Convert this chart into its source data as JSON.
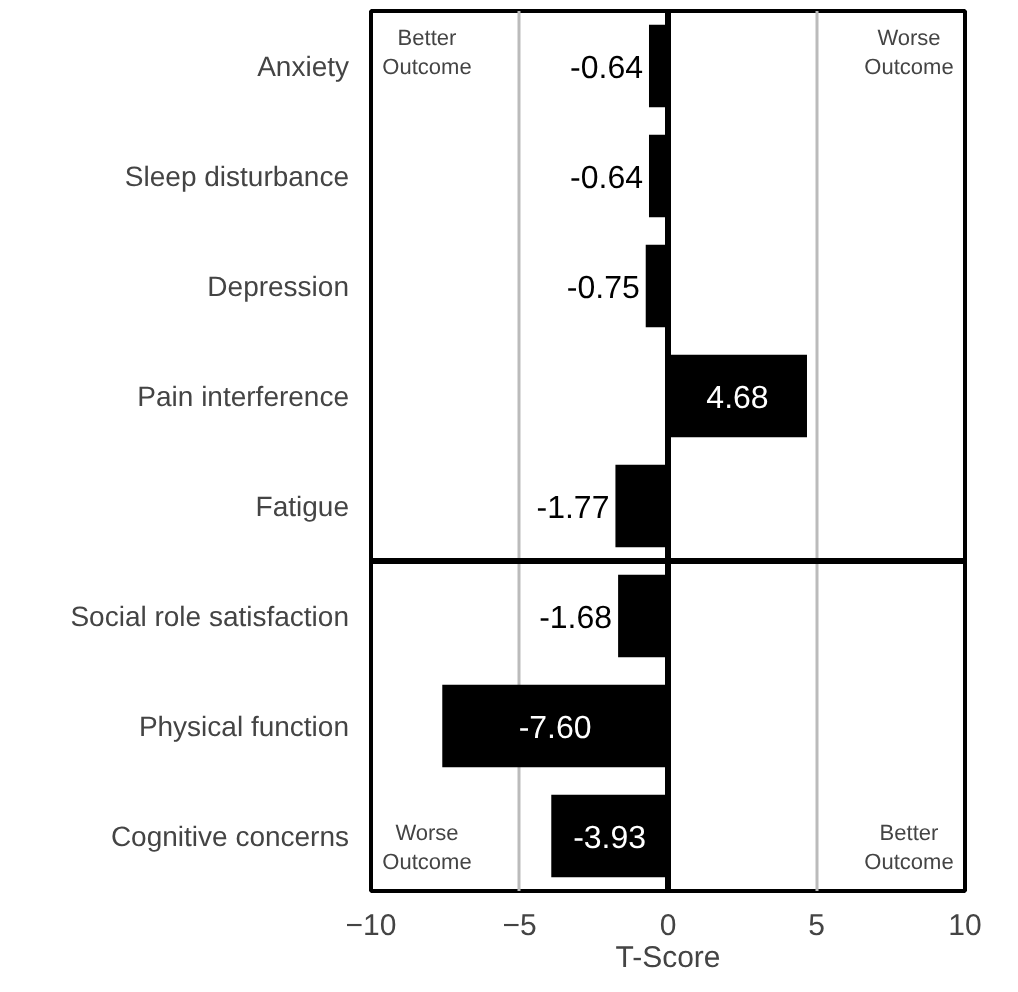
{
  "chart_data": {
    "type": "bar",
    "orientation": "horizontal",
    "xlabel": "T-Score",
    "categories": [
      "Anxiety",
      "Sleep disturbance",
      "Depression",
      "Pain interference",
      "Fatigue",
      "Social role satisfaction",
      "Physical function",
      "Cognitive concerns"
    ],
    "values": [
      -0.64,
      -0.64,
      -0.75,
      4.68,
      -1.77,
      -1.68,
      -7.6,
      -3.93
    ],
    "value_labels": [
      "-0.64",
      "-0.64",
      "-0.75",
      "4.68",
      "-1.77",
      "-1.68",
      "-7.60",
      "-3.93"
    ],
    "color": "#000000",
    "xlim": [
      -10,
      10
    ],
    "xticks": [
      -10,
      -5,
      0,
      5,
      10
    ],
    "grid": "x",
    "annotations": [
      "Better Outcome",
      "Worse Outcome",
      "Worse Outcome",
      "Better Outcome"
    ]
  }
}
